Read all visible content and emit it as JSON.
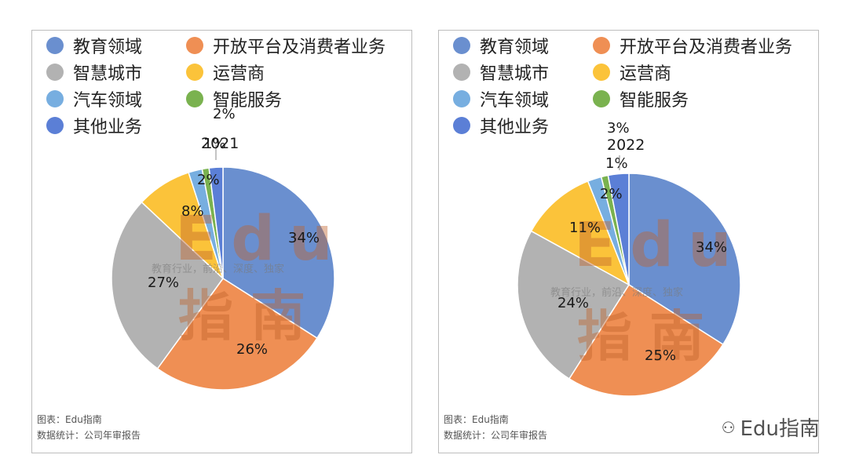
{
  "colors": {
    "教育领域": "#6a8fcf",
    "开放平台及消费者业务": "#ef8f54",
    "智慧城市": "#b2b2b2",
    "运营商": "#fbc33a",
    "汽车领域": "#77aee0",
    "智能服务": "#7ab24f",
    "其他业务": "#5b7fd6"
  },
  "legend": [
    {
      "label": "教育领域",
      "color": "#6a8fcf"
    },
    {
      "label": "开放平台及消费者业务",
      "color": "#ef8f54"
    },
    {
      "label": "智慧城市",
      "color": "#b2b2b2"
    },
    {
      "label": "运营商",
      "color": "#fbc33a"
    },
    {
      "label": "汽车领域",
      "color": "#77aee0"
    },
    {
      "label": "智能服务",
      "color": "#7ab24f"
    },
    {
      "label": "其他业务",
      "color": "#5b7fd6"
    }
  ],
  "watermark": {
    "main": "Edu",
    "sub": "教育行业，前沿、深度、独家",
    "main2": "指南"
  },
  "footer": {
    "line1": "图表：Edu指南",
    "line2": "数据统计：公司年审报告",
    "line1_right": "图表：Edu指南"
  },
  "brand_watermark": {
    "icon": "wechat-icon",
    "text": "Edu指南"
  },
  "chart_data": [
    {
      "type": "pie",
      "year_label": "2021",
      "categories": [
        "教育领域",
        "开放平台及消费者业务",
        "智慧城市",
        "运营商",
        "汽车领域",
        "智能服务",
        "其他业务"
      ],
      "values": [
        34,
        26,
        27,
        8,
        2,
        1,
        2
      ],
      "value_labels": [
        "34%",
        "26%",
        "27%",
        "8%",
        "2%",
        "1%",
        "2%"
      ]
    },
    {
      "type": "pie",
      "year_label": "2022",
      "categories": [
        "教育领域",
        "开放平台及消费者业务",
        "智慧城市",
        "运营商",
        "汽车领域",
        "智能服务",
        "其他业务"
      ],
      "values": [
        34,
        25,
        24,
        11,
        2,
        1,
        3
      ],
      "value_labels": [
        "34%",
        "25%",
        "24%",
        "11%",
        "2%",
        "1%",
        "3%"
      ]
    }
  ]
}
